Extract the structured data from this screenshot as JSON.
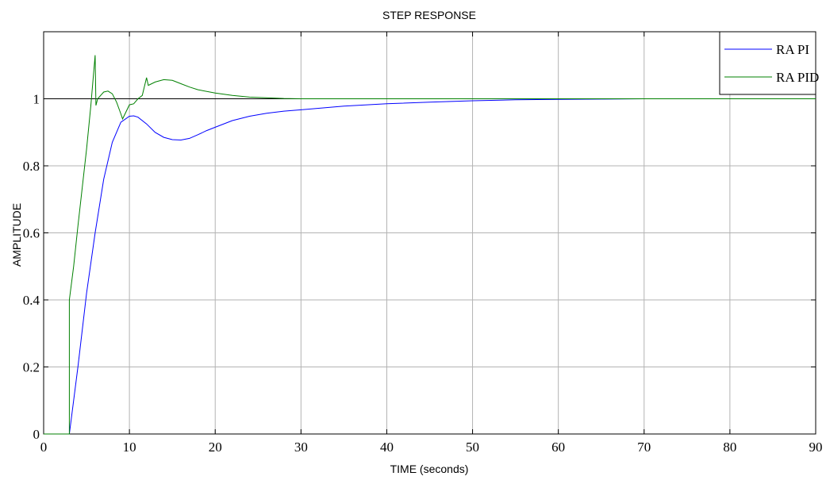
{
  "chart_data": {
    "type": "line",
    "title": "STEP RESPONSE",
    "xlabel": "TIME (seconds)",
    "ylabel": "AMPLITUDE",
    "xlim": [
      0,
      90
    ],
    "ylim": [
      0,
      1.2
    ],
    "xticks": [
      "0",
      "10",
      "20",
      "30",
      "40",
      "50",
      "60",
      "70",
      "80",
      "90"
    ],
    "yticks": [
      "0",
      "0.2",
      "0.4",
      "0.6",
      "0.8",
      "1"
    ],
    "xtick_values": [
      0,
      10,
      20,
      30,
      40,
      50,
      60,
      70,
      80,
      90
    ],
    "ytick_values": [
      0,
      0.2,
      0.4,
      0.6,
      0.8,
      1
    ],
    "grid": true,
    "legend_position": "top-right",
    "reference_line": {
      "y": 1.0,
      "color": "#000000"
    },
    "series": [
      {
        "name": "RA PI",
        "color": "#0000ff",
        "x": [
          0,
          3,
          3.5,
          4,
          5,
          6,
          7,
          8,
          9,
          10,
          10.5,
          11,
          12,
          13,
          14,
          15,
          16,
          17,
          18,
          19,
          20,
          22,
          24,
          26,
          28,
          30,
          35,
          40,
          45,
          50,
          55,
          60,
          65,
          70,
          80,
          90
        ],
        "y": [
          0,
          0,
          0.1,
          0.2,
          0.42,
          0.6,
          0.76,
          0.87,
          0.93,
          0.948,
          0.949,
          0.945,
          0.925,
          0.9,
          0.885,
          0.878,
          0.877,
          0.882,
          0.893,
          0.905,
          0.915,
          0.935,
          0.948,
          0.957,
          0.963,
          0.967,
          0.978,
          0.985,
          0.99,
          0.994,
          0.997,
          0.998,
          0.999,
          1.0,
          1.0,
          1.0
        ]
      },
      {
        "name": "RA PID",
        "color": "#008000",
        "x": [
          0,
          3,
          3,
          3.5,
          4,
          5,
          5.5,
          6,
          6.1,
          6.3,
          7,
          7.5,
          8,
          8.5,
          9,
          9.2,
          10,
          10.5,
          11,
          11.5,
          12,
          12.2,
          13,
          14,
          15,
          16,
          17,
          18,
          20,
          22,
          24,
          26,
          28,
          30,
          35,
          40,
          50,
          60,
          70,
          80,
          90
        ],
        "y": [
          0,
          0,
          0.4,
          0.5,
          0.62,
          0.85,
          0.98,
          1.13,
          0.98,
          1.0,
          1.02,
          1.023,
          1.015,
          0.99,
          0.955,
          0.94,
          0.982,
          0.985,
          1.0,
          1.01,
          1.063,
          1.04,
          1.05,
          1.057,
          1.055,
          1.045,
          1.035,
          1.027,
          1.017,
          1.01,
          1.005,
          1.003,
          1.001,
          1.0,
          1.0,
          1.0,
          1.0,
          1.0,
          1.0,
          1.0,
          1.0
        ]
      }
    ]
  }
}
